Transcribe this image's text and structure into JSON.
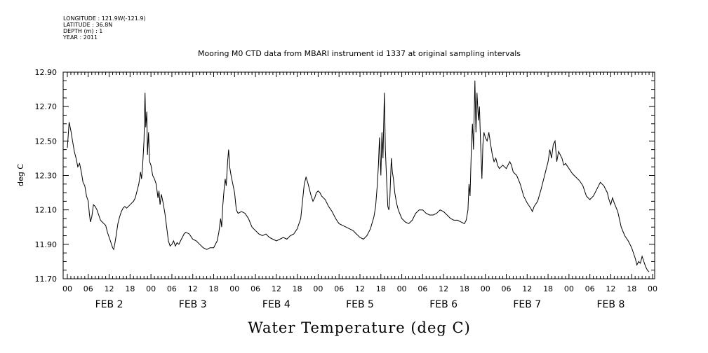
{
  "metadata": {
    "longitude": "LONGITUDE : 121.9W(-121.9)",
    "latitude": "LATITUDE : 36.8N",
    "depth": "DEPTH (m) : 1",
    "year": "YEAR : 2011"
  },
  "chart_data": {
    "type": "line",
    "title": "Mooring M0 CTD data from MBARI instrument id 1337 at original sampling intervals",
    "xlabel": "Water Temperature (deg C)",
    "ylabel": "deg C",
    "ylim": [
      11.7,
      12.9
    ],
    "yticks": [
      "11.70",
      "11.90",
      "12.10",
      "12.30",
      "12.50",
      "12.70",
      "12.90"
    ],
    "xlim_hours": [
      0,
      168
    ],
    "x_hour_ticks": [
      "00",
      "06",
      "12",
      "18",
      "00",
      "06",
      "12",
      "18",
      "00",
      "06",
      "12",
      "18",
      "00",
      "06",
      "12",
      "18",
      "00",
      "06",
      "12",
      "18",
      "00",
      "06",
      "12",
      "18",
      "00",
      "06",
      "12",
      "18",
      "00"
    ],
    "day_labels": [
      "FEB  2",
      "FEB  3",
      "FEB  4",
      "FEB  5",
      "FEB  6",
      "FEB  7",
      "FEB  8"
    ],
    "grid": false,
    "series": [
      {
        "color": "#000000",
        "points": [
          [
            0,
            12.46
          ],
          [
            0.5,
            12.61
          ],
          [
            1.0,
            12.56
          ],
          [
            1.5,
            12.5
          ],
          [
            2.0,
            12.44
          ],
          [
            2.5,
            12.4
          ],
          [
            3.0,
            12.35
          ],
          [
            3.5,
            12.37
          ],
          [
            4.0,
            12.32
          ],
          [
            4.5,
            12.26
          ],
          [
            5.0,
            12.24
          ],
          [
            5.5,
            12.18
          ],
          [
            6.0,
            12.15
          ],
          [
            6.3,
            12.08
          ],
          [
            6.6,
            12.03
          ],
          [
            7.0,
            12.06
          ],
          [
            7.5,
            12.13
          ],
          [
            8.0,
            12.12
          ],
          [
            8.5,
            12.1
          ],
          [
            9.0,
            12.07
          ],
          [
            9.5,
            12.04
          ],
          [
            10.0,
            12.03
          ],
          [
            10.5,
            12.02
          ],
          [
            11.0,
            12.01
          ],
          [
            11.5,
            11.97
          ],
          [
            12.0,
            11.94
          ],
          [
            12.5,
            11.91
          ],
          [
            13.0,
            11.88
          ],
          [
            13.3,
            11.87
          ],
          [
            13.6,
            11.9
          ],
          [
            14.0,
            11.95
          ],
          [
            14.5,
            12.02
          ],
          [
            15.0,
            12.06
          ],
          [
            15.5,
            12.09
          ],
          [
            16.0,
            12.11
          ],
          [
            16.5,
            12.12
          ],
          [
            17.0,
            12.11
          ],
          [
            17.5,
            12.12
          ],
          [
            18.0,
            12.13
          ],
          [
            18.5,
            12.14
          ],
          [
            19.0,
            12.15
          ],
          [
            19.5,
            12.17
          ],
          [
            20.0,
            12.21
          ],
          [
            20.5,
            12.25
          ],
          [
            21.0,
            12.32
          ],
          [
            21.3,
            12.28
          ],
          [
            21.6,
            12.35
          ],
          [
            22.0,
            12.5
          ],
          [
            22.3,
            12.78
          ],
          [
            22.5,
            12.58
          ],
          [
            22.8,
            12.67
          ],
          [
            23.0,
            12.42
          ],
          [
            23.3,
            12.55
          ],
          [
            23.6,
            12.38
          ],
          [
            24.0,
            12.36
          ],
          [
            24.5,
            12.3
          ],
          [
            25.0,
            12.28
          ],
          [
            25.5,
            12.25
          ],
          [
            26.0,
            12.17
          ],
          [
            26.3,
            12.21
          ],
          [
            26.6,
            12.13
          ],
          [
            27.0,
            12.19
          ],
          [
            27.5,
            12.14
          ],
          [
            28.0,
            12.08
          ],
          [
            28.5,
            12.0
          ],
          [
            29.0,
            11.92
          ],
          [
            29.5,
            11.89
          ],
          [
            30.0,
            11.9
          ],
          [
            30.5,
            11.92
          ],
          [
            31.0,
            11.89
          ],
          [
            31.5,
            11.91
          ],
          [
            32.0,
            11.9
          ],
          [
            32.5,
            11.92
          ],
          [
            33.0,
            11.94
          ],
          [
            33.5,
            11.96
          ],
          [
            34.0,
            11.97
          ],
          [
            35.0,
            11.96
          ],
          [
            36.0,
            11.93
          ],
          [
            37.0,
            11.92
          ],
          [
            38.0,
            11.9
          ],
          [
            39.0,
            11.88
          ],
          [
            40.0,
            11.87
          ],
          [
            41.0,
            11.88
          ],
          [
            42.0,
            11.88
          ],
          [
            43.0,
            11.92
          ],
          [
            43.5,
            11.97
          ],
          [
            44.0,
            12.05
          ],
          [
            44.3,
            12.0
          ],
          [
            44.6,
            12.12
          ],
          [
            45.0,
            12.22
          ],
          [
            45.3,
            12.28
          ],
          [
            45.6,
            12.24
          ],
          [
            46.0,
            12.38
          ],
          [
            46.3,
            12.45
          ],
          [
            46.6,
            12.35
          ],
          [
            47.0,
            12.3
          ],
          [
            47.5,
            12.25
          ],
          [
            48.0,
            12.2
          ],
          [
            48.5,
            12.1
          ],
          [
            49.0,
            12.08
          ],
          [
            50.0,
            12.09
          ],
          [
            51.0,
            12.08
          ],
          [
            52.0,
            12.05
          ],
          [
            53.0,
            12.0
          ],
          [
            54.0,
            11.98
          ],
          [
            55.0,
            11.96
          ],
          [
            56.0,
            11.95
          ],
          [
            57.0,
            11.96
          ],
          [
            58.0,
            11.94
          ],
          [
            59.0,
            11.93
          ],
          [
            60.0,
            11.92
          ],
          [
            61.0,
            11.93
          ],
          [
            62.0,
            11.94
          ],
          [
            63.0,
            11.93
          ],
          [
            64.0,
            11.95
          ],
          [
            65.0,
            11.96
          ],
          [
            66.0,
            11.99
          ],
          [
            67.0,
            12.05
          ],
          [
            67.5,
            12.15
          ],
          [
            68.0,
            12.25
          ],
          [
            68.5,
            12.29
          ],
          [
            69.0,
            12.26
          ],
          [
            69.5,
            12.22
          ],
          [
            70.0,
            12.18
          ],
          [
            70.5,
            12.15
          ],
          [
            71.0,
            12.17
          ],
          [
            71.5,
            12.2
          ],
          [
            72.0,
            12.21
          ],
          [
            72.5,
            12.2
          ],
          [
            73.0,
            12.18
          ],
          [
            74.0,
            12.16
          ],
          [
            75.0,
            12.12
          ],
          [
            76.0,
            12.09
          ],
          [
            77.0,
            12.05
          ],
          [
            78.0,
            12.02
          ],
          [
            79.0,
            12.01
          ],
          [
            80.0,
            12.0
          ],
          [
            81.0,
            11.99
          ],
          [
            82.0,
            11.98
          ],
          [
            83.0,
            11.96
          ],
          [
            84.0,
            11.94
          ],
          [
            85.0,
            11.93
          ],
          [
            86.0,
            11.95
          ],
          [
            87.0,
            11.99
          ],
          [
            88.0,
            12.06
          ],
          [
            88.5,
            12.12
          ],
          [
            89.0,
            12.25
          ],
          [
            89.3,
            12.36
          ],
          [
            89.6,
            12.52
          ],
          [
            90.0,
            12.3
          ],
          [
            90.3,
            12.55
          ],
          [
            90.6,
            12.4
          ],
          [
            91.0,
            12.78
          ],
          [
            91.3,
            12.45
          ],
          [
            91.6,
            12.3
          ],
          [
            92.0,
            12.12
          ],
          [
            92.3,
            12.1
          ],
          [
            92.6,
            12.18
          ],
          [
            93.0,
            12.4
          ],
          [
            93.3,
            12.32
          ],
          [
            93.6,
            12.28
          ],
          [
            94.0,
            12.2
          ],
          [
            94.5,
            12.14
          ],
          [
            95.0,
            12.1
          ],
          [
            96.0,
            12.05
          ],
          [
            97.0,
            12.03
          ],
          [
            98.0,
            12.02
          ],
          [
            99.0,
            12.04
          ],
          [
            100.0,
            12.08
          ],
          [
            101.0,
            12.1
          ],
          [
            102.0,
            12.1
          ],
          [
            103.0,
            12.08
          ],
          [
            104.0,
            12.07
          ],
          [
            105.0,
            12.07
          ],
          [
            106.0,
            12.08
          ],
          [
            107.0,
            12.1
          ],
          [
            108.0,
            12.09
          ],
          [
            109.0,
            12.07
          ],
          [
            110.0,
            12.05
          ],
          [
            111.0,
            12.04
          ],
          [
            112.0,
            12.04
          ],
          [
            113.0,
            12.03
          ],
          [
            114.0,
            12.02
          ],
          [
            114.5,
            12.04
          ],
          [
            115.0,
            12.1
          ],
          [
            115.3,
            12.25
          ],
          [
            115.6,
            12.18
          ],
          [
            116.0,
            12.48
          ],
          [
            116.3,
            12.6
          ],
          [
            116.6,
            12.45
          ],
          [
            117.0,
            12.85
          ],
          [
            117.3,
            12.55
          ],
          [
            117.6,
            12.78
          ],
          [
            118.0,
            12.62
          ],
          [
            118.3,
            12.7
          ],
          [
            118.6,
            12.5
          ],
          [
            119.0,
            12.28
          ],
          [
            119.3,
            12.48
          ],
          [
            119.6,
            12.55
          ],
          [
            120.0,
            12.52
          ],
          [
            120.5,
            12.5
          ],
          [
            121.0,
            12.55
          ],
          [
            121.5,
            12.48
          ],
          [
            122.0,
            12.42
          ],
          [
            122.5,
            12.38
          ],
          [
            123.0,
            12.4
          ],
          [
            123.5,
            12.36
          ],
          [
            124.0,
            12.34
          ],
          [
            125.0,
            12.36
          ],
          [
            126.0,
            12.34
          ],
          [
            127.0,
            12.38
          ],
          [
            127.5,
            12.36
          ],
          [
            128.0,
            12.32
          ],
          [
            129.0,
            12.3
          ],
          [
            130.0,
            12.25
          ],
          [
            131.0,
            12.18
          ],
          [
            132.0,
            12.14
          ],
          [
            133.0,
            12.11
          ],
          [
            133.5,
            12.09
          ],
          [
            134.0,
            12.12
          ],
          [
            135.0,
            12.15
          ],
          [
            136.0,
            12.22
          ],
          [
            137.0,
            12.3
          ],
          [
            138.0,
            12.38
          ],
          [
            138.5,
            12.45
          ],
          [
            139.0,
            12.4
          ],
          [
            139.5,
            12.48
          ],
          [
            140.0,
            12.5
          ],
          [
            140.5,
            12.38
          ],
          [
            141.0,
            12.44
          ],
          [
            141.5,
            12.42
          ],
          [
            142.0,
            12.4
          ],
          [
            142.5,
            12.36
          ],
          [
            143.0,
            12.37
          ],
          [
            144.0,
            12.34
          ],
          [
            145.0,
            12.31
          ],
          [
            146.0,
            12.29
          ],
          [
            147.0,
            12.27
          ],
          [
            148.0,
            12.24
          ],
          [
            149.0,
            12.18
          ],
          [
            150.0,
            12.16
          ],
          [
            151.0,
            12.18
          ],
          [
            152.0,
            12.22
          ],
          [
            153.0,
            12.26
          ],
          [
            154.0,
            12.24
          ],
          [
            155.0,
            12.2
          ],
          [
            155.5,
            12.16
          ],
          [
            156.0,
            12.13
          ],
          [
            156.5,
            12.17
          ],
          [
            157.0,
            12.14
          ],
          [
            158.0,
            12.09
          ],
          [
            159.0,
            12.0
          ],
          [
            160.0,
            11.95
          ],
          [
            161.0,
            11.92
          ],
          [
            162.0,
            11.88
          ],
          [
            162.5,
            11.85
          ],
          [
            163.0,
            11.82
          ],
          [
            163.5,
            11.78
          ],
          [
            164.0,
            11.8
          ],
          [
            164.5,
            11.79
          ],
          [
            165.0,
            11.83
          ],
          [
            165.5,
            11.8
          ],
          [
            166.0,
            11.77
          ],
          [
            166.5,
            11.75
          ],
          [
            167.0,
            11.74
          ]
        ]
      }
    ]
  }
}
